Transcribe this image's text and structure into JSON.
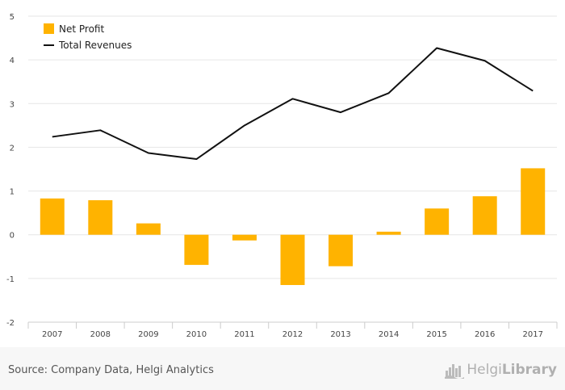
{
  "chart_data": {
    "type": "bar",
    "categories": [
      "2007",
      "2008",
      "2009",
      "2010",
      "2011",
      "2012",
      "2013",
      "2014",
      "2015",
      "2016",
      "2017"
    ],
    "series": [
      {
        "name": "Net Profit",
        "type": "bar",
        "color": "#ffb300",
        "values": [
          0.83,
          0.79,
          0.26,
          -0.69,
          -0.13,
          -1.15,
          -0.72,
          0.07,
          0.6,
          0.88,
          1.52
        ]
      },
      {
        "name": "Total Revenues",
        "type": "line",
        "color": "#111111",
        "values": [
          2.24,
          2.39,
          1.87,
          1.73,
          2.5,
          3.11,
          2.8,
          3.24,
          4.27,
          3.98,
          3.29
        ]
      }
    ],
    "ylim": [
      -2,
      5
    ],
    "yticks": [
      "-2",
      "-1",
      "0",
      "1",
      "2",
      "3",
      "4",
      "5"
    ],
    "legend_position": "top-left",
    "grid": true
  },
  "footer": {
    "source": "Source: Company Data, Helgi Analytics",
    "brand_light": "Helgi",
    "brand_bold": "Library",
    "brand_icon": "city-skyline-icon"
  }
}
